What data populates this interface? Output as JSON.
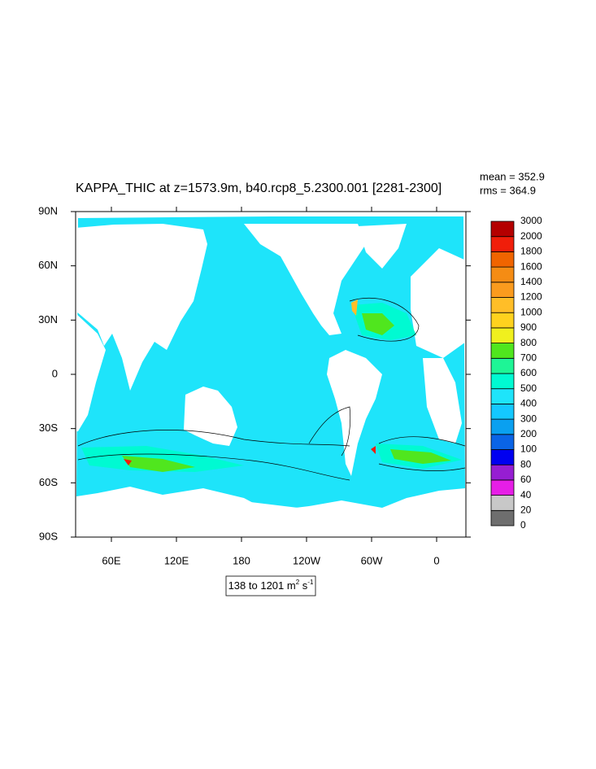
{
  "title": "KAPPA_THIC at z=1573.9m, b40.rcp8_5.2300.001 [2281-2300]",
  "stats": {
    "mean": "mean = 352.9",
    "rms": "rms = 364.9"
  },
  "map": {
    "xlim": [
      27,
      387
    ],
    "ylim": [
      -90,
      90
    ],
    "xticks": [
      {
        "value": 60,
        "label": "60E"
      },
      {
        "value": 120,
        "label": "120E"
      },
      180,
      {
        "value": 240,
        "label": "120W"
      },
      {
        "value": 300,
        "label": "60W"
      },
      {
        "value": 360,
        "label": "0"
      }
    ],
    "yticks": [
      {
        "value": -90,
        "label": "90S"
      },
      {
        "value": -60,
        "label": "60S"
      },
      {
        "value": -30,
        "label": "30S"
      },
      0,
      {
        "value": 30,
        "label": "30N"
      },
      {
        "value": 60,
        "label": "60N"
      },
      {
        "value": 90,
        "label": "90N"
      }
    ],
    "ocean_color": "#1ee4fa"
  },
  "colorbar": {
    "levels": [
      0,
      20,
      40,
      60,
      80,
      100,
      200,
      300,
      400,
      500,
      600,
      700,
      800,
      900,
      1000,
      1200,
      1400,
      1600,
      1800,
      2000,
      3000
    ],
    "colors": [
      "#6e6e6e",
      "#c8c8c8",
      "#e61ee6",
      "#961ed2",
      "#0000f0",
      "#0a64e6",
      "#0aa0f0",
      "#14c8ff",
      "#1ee4fa",
      "#00fad2",
      "#1ef596",
      "#50e61e",
      "#f0f01e",
      "#ffd21e",
      "#ffbe28",
      "#fa9b1e",
      "#f58c14",
      "#f06400",
      "#f01e0a",
      "#b40000"
    ]
  },
  "range_label": [
    "138 to 1201 m",
    "2",
    " s",
    "-1"
  ]
}
